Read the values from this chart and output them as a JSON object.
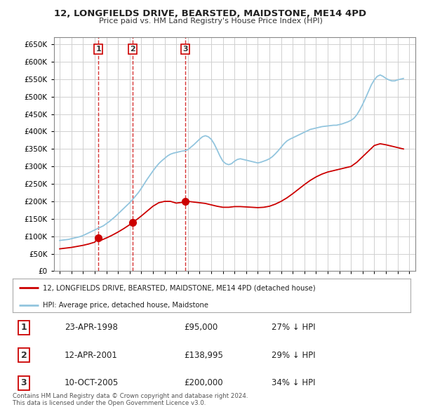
{
  "title": "12, LONGFIELDS DRIVE, BEARSTED, MAIDSTONE, ME14 4PD",
  "subtitle": "Price paid vs. HM Land Registry's House Price Index (HPI)",
  "ylim": [
    0,
    670000
  ],
  "yticks": [
    0,
    50000,
    100000,
    150000,
    200000,
    250000,
    300000,
    350000,
    400000,
    450000,
    500000,
    550000,
    600000,
    650000
  ],
  "xlim_start": 1994.5,
  "xlim_end": 2025.5,
  "purchases": [
    {
      "date_num": 1998.31,
      "price": 95000,
      "label": "1"
    },
    {
      "date_num": 2001.28,
      "price": 138995,
      "label": "2"
    },
    {
      "date_num": 2005.78,
      "price": 200000,
      "label": "3"
    }
  ],
  "hpi_line_color": "#92c5de",
  "price_line_color": "#cc0000",
  "purchase_marker_color": "#cc0000",
  "vline_color": "#cc0000",
  "grid_color": "#d0d0d0",
  "background_color": "#ffffff",
  "table_rows": [
    {
      "num": "1",
      "date": "23-APR-1998",
      "price": "£95,000",
      "hpi": "27% ↓ HPI"
    },
    {
      "num": "2",
      "date": "12-APR-2001",
      "price": "£138,995",
      "hpi": "29% ↓ HPI"
    },
    {
      "num": "3",
      "date": "10-OCT-2005",
      "price": "£200,000",
      "hpi": "34% ↓ HPI"
    }
  ],
  "legend_entry1": "12, LONGFIELDS DRIVE, BEARSTED, MAIDSTONE, ME14 4PD (detached house)",
  "legend_entry2": "HPI: Average price, detached house, Maidstone",
  "footnote": "Contains HM Land Registry data © Crown copyright and database right 2024.\nThis data is licensed under the Open Government Licence v3.0.",
  "hpi_data_x": [
    1995.0,
    1995.25,
    1995.5,
    1995.75,
    1996.0,
    1996.25,
    1996.5,
    1996.75,
    1997.0,
    1997.25,
    1997.5,
    1997.75,
    1998.0,
    1998.25,
    1998.5,
    1998.75,
    1999.0,
    1999.25,
    1999.5,
    1999.75,
    2000.0,
    2000.25,
    2000.5,
    2000.75,
    2001.0,
    2001.25,
    2001.5,
    2001.75,
    2002.0,
    2002.25,
    2002.5,
    2002.75,
    2003.0,
    2003.25,
    2003.5,
    2003.75,
    2004.0,
    2004.25,
    2004.5,
    2004.75,
    2005.0,
    2005.25,
    2005.5,
    2005.75,
    2006.0,
    2006.25,
    2006.5,
    2006.75,
    2007.0,
    2007.25,
    2007.5,
    2007.75,
    2008.0,
    2008.25,
    2008.5,
    2008.75,
    2009.0,
    2009.25,
    2009.5,
    2009.75,
    2010.0,
    2010.25,
    2010.5,
    2010.75,
    2011.0,
    2011.25,
    2011.5,
    2011.75,
    2012.0,
    2012.25,
    2012.5,
    2012.75,
    2013.0,
    2013.25,
    2013.5,
    2013.75,
    2014.0,
    2014.25,
    2014.5,
    2014.75,
    2015.0,
    2015.25,
    2015.5,
    2015.75,
    2016.0,
    2016.25,
    2016.5,
    2016.75,
    2017.0,
    2017.25,
    2017.5,
    2017.75,
    2018.0,
    2018.25,
    2018.5,
    2018.75,
    2019.0,
    2019.25,
    2019.5,
    2019.75,
    2020.0,
    2020.25,
    2020.5,
    2020.75,
    2021.0,
    2021.25,
    2021.5,
    2021.75,
    2022.0,
    2022.25,
    2022.5,
    2022.75,
    2023.0,
    2023.25,
    2023.5,
    2023.75,
    2024.0,
    2024.25,
    2024.5
  ],
  "hpi_data_y": [
    88000,
    89000,
    90000,
    91000,
    93000,
    95000,
    97000,
    99000,
    102000,
    106000,
    110000,
    114000,
    118000,
    122000,
    126000,
    130000,
    136000,
    142000,
    149000,
    156000,
    164000,
    172000,
    180000,
    188000,
    196000,
    205000,
    215000,
    225000,
    237000,
    250000,
    263000,
    275000,
    287000,
    298000,
    308000,
    316000,
    323000,
    330000,
    335000,
    338000,
    340000,
    342000,
    344000,
    345000,
    348000,
    355000,
    362000,
    370000,
    378000,
    385000,
    388000,
    385000,
    378000,
    365000,
    348000,
    330000,
    315000,
    308000,
    305000,
    308000,
    315000,
    320000,
    322000,
    320000,
    318000,
    316000,
    314000,
    312000,
    310000,
    312000,
    315000,
    318000,
    322000,
    328000,
    336000,
    345000,
    355000,
    365000,
    373000,
    378000,
    382000,
    386000,
    390000,
    394000,
    398000,
    402000,
    406000,
    408000,
    410000,
    412000,
    414000,
    415000,
    416000,
    417000,
    418000,
    418000,
    420000,
    422000,
    425000,
    428000,
    432000,
    438000,
    448000,
    462000,
    478000,
    496000,
    515000,
    534000,
    548000,
    558000,
    562000,
    558000,
    552000,
    548000,
    545000,
    545000,
    548000,
    550000,
    552000
  ],
  "price_paid_x": [
    1995.0,
    1995.5,
    1996.0,
    1996.5,
    1997.0,
    1997.5,
    1998.0,
    1998.31,
    1998.5,
    1999.0,
    1999.5,
    2000.0,
    2000.5,
    2001.0,
    2001.28,
    2001.5,
    2002.0,
    2002.5,
    2003.0,
    2003.5,
    2004.0,
    2004.5,
    2005.0,
    2005.5,
    2005.78,
    2006.0,
    2006.5,
    2007.0,
    2007.5,
    2008.0,
    2008.5,
    2009.0,
    2009.5,
    2010.0,
    2010.5,
    2011.0,
    2011.5,
    2012.0,
    2012.5,
    2013.0,
    2013.5,
    2014.0,
    2014.5,
    2015.0,
    2015.5,
    2016.0,
    2016.5,
    2017.0,
    2017.5,
    2018.0,
    2018.5,
    2019.0,
    2019.5,
    2020.0,
    2020.5,
    2021.0,
    2021.5,
    2022.0,
    2022.5,
    2023.0,
    2023.5,
    2024.0,
    2024.5
  ],
  "price_paid_y": [
    64000,
    66000,
    68000,
    71000,
    74000,
    78000,
    83000,
    95000,
    88000,
    95000,
    103000,
    112000,
    122000,
    133000,
    138995,
    145000,
    158000,
    172000,
    186000,
    196000,
    200000,
    200000,
    195000,
    197000,
    200000,
    200000,
    198000,
    196000,
    194000,
    190000,
    186000,
    183000,
    183000,
    185000,
    185000,
    184000,
    183000,
    182000,
    183000,
    186000,
    192000,
    200000,
    210000,
    222000,
    235000,
    248000,
    260000,
    270000,
    278000,
    284000,
    288000,
    292000,
    296000,
    300000,
    312000,
    328000,
    344000,
    360000,
    365000,
    362000,
    358000,
    354000,
    350000
  ]
}
